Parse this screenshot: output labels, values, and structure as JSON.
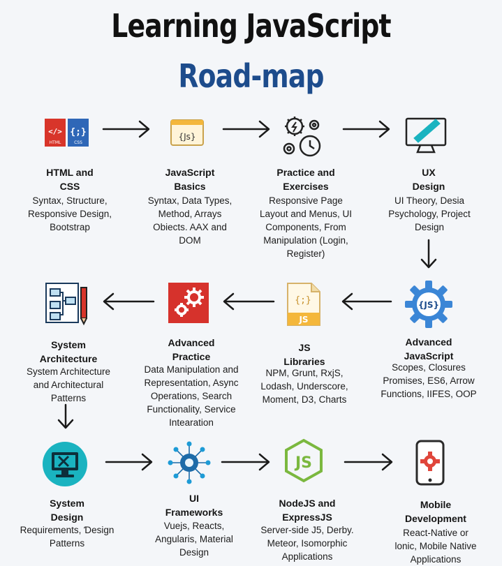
{
  "header": {
    "title_line1": "Learning JavaScript",
    "title_line2": "Road-map"
  },
  "nodes": [
    {
      "id": "html-css",
      "title": "HTML and\nCSS",
      "desc": "Syntax, Structure,\nResponsive Design,\nBootstrap",
      "icon": "html-css-icon",
      "icon_text": [
        "</>",
        "{;}",
        "HTML",
        "CSS"
      ]
    },
    {
      "id": "js-basics",
      "title": "JavaScript\nBasics",
      "desc": "Syntax, Data Types,\nMethod, Arrays\nObiects. AAX and\nDOM",
      "icon": "js-window-icon",
      "icon_text": [
        "{Js}"
      ]
    },
    {
      "id": "practice",
      "title": "Practice and\nExercises",
      "desc": "Responsive Page\nLayout and Menus, UI\nComponents, From\nManipulation (Login,\nRegister)",
      "icon": "gears-clock-icon"
    },
    {
      "id": "ux",
      "title": "UX\nDesign",
      "desc": "UI Theory, Desia\nPsychology, Project\nDesign",
      "icon": "monitor-pen-icon"
    },
    {
      "id": "advanced-js",
      "title": "Advanced\nJavaScript",
      "desc": "Scopes, Closures\nPromises, ES6, Arrow\nFunctions, IIFES, OOP",
      "icon": "js-gear-icon",
      "icon_text": [
        "{JS}"
      ]
    },
    {
      "id": "js-libraries",
      "title": "JS\nLibraries",
      "desc": "NPM, Grunt, RxjS,\nLodash, Underscore,\nMoment, D3, Charts",
      "icon": "js-file-icon",
      "icon_text": [
        "{;}",
        "JS"
      ]
    },
    {
      "id": "advanced-practice",
      "title": "Advanced\nPractice",
      "desc": "Data Manipulation and\nRepresentation, Async\nOperations, Search\nFunctionality, Service\nIntearation",
      "icon": "red-gears-icon"
    },
    {
      "id": "system-architecture",
      "title": "System\nArchitecture",
      "desc": "System Architecture\nand Architectural\nPatterns",
      "icon": "blueprint-pencil-icon"
    },
    {
      "id": "system-design",
      "title": "System\nDesign",
      "desc": "Requirements, Ɗesign\nPatterns",
      "icon": "design-monitor-icon"
    },
    {
      "id": "ui-frameworks",
      "title": "UI\nFrameworks",
      "desc": "Vuejs, Reacts,\nAngularis, Material\nDesign",
      "icon": "network-gear-icon"
    },
    {
      "id": "nodejs",
      "title": "NodeJS and\nExpressJS",
      "desc": "Server-side J5, Derby.\nMeteor, Isomorphic\nApplications",
      "icon": "nodejs-hex-icon",
      "icon_text": [
        "JS"
      ]
    },
    {
      "id": "mobile",
      "title": "Mobile\nDevelopment",
      "desc": "React-Native or\nlonic, Mobile Native\nApplications",
      "icon": "phone-gear-icon"
    }
  ],
  "colors": {
    "title_blue": "#1d4c8c",
    "html_red": "#d8352a",
    "css_blue": "#2f67b7",
    "js_yellow": "#f4b73b",
    "adv_js_blue": "#3b86d6",
    "advanced_practice_red": "#d6322c",
    "system_design_teal": "#1ab3c0",
    "node_green": "#7bb83f",
    "mobile_red": "#e0463b",
    "arrow": "#1a1a1a"
  }
}
